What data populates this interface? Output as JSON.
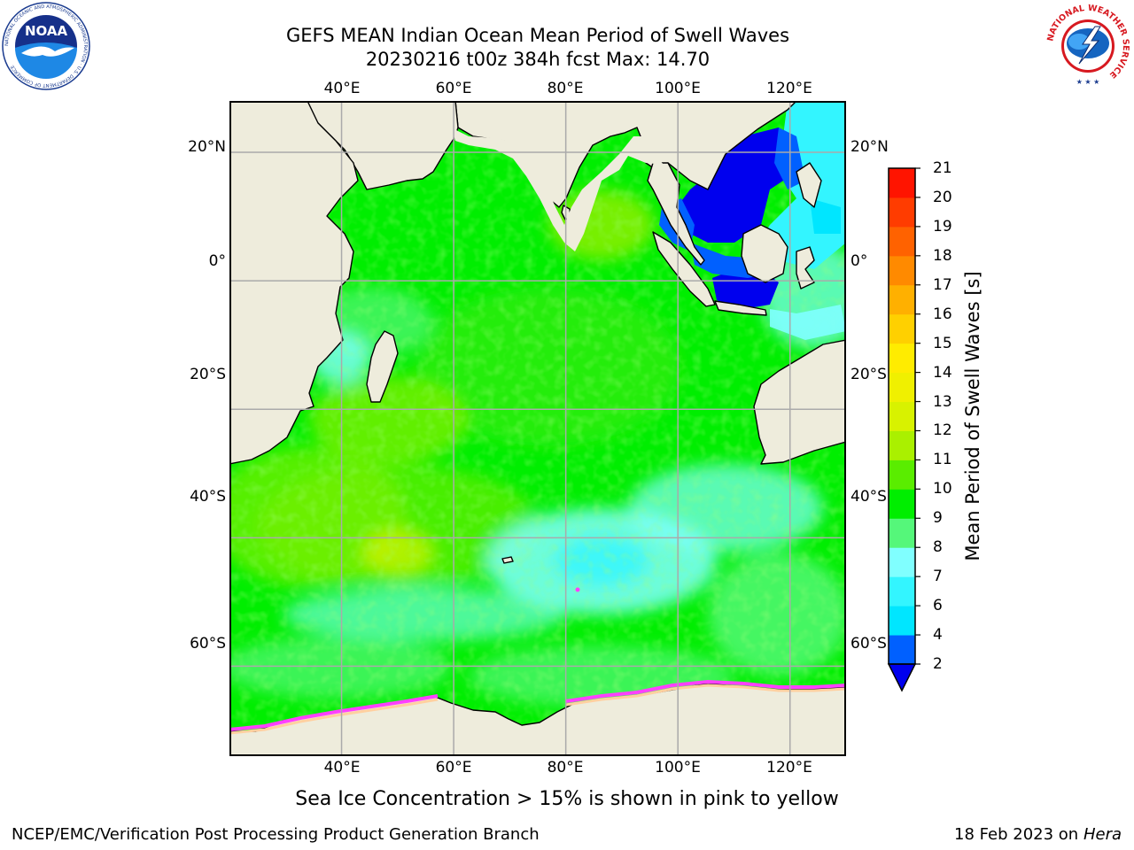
{
  "header": {
    "title": "GEFS MEAN Indian Ocean Mean Period of Swell Waves",
    "subtitle": "20230216 t00z 384h fcst   Max: 14.70"
  },
  "logos": {
    "left": {
      "text": "NOAA",
      "ring_text": "NATIONAL OCEANIC AND ATMOSPHERIC ADMINISTRATION · U.S. DEPARTMENT OF COMMERCE"
    },
    "right": {
      "ring_text": "NATIONAL WEATHER SERVICE"
    }
  },
  "map": {
    "projection": "equidistant-cylindrical",
    "lon_range": [
      20,
      130
    ],
    "lat_range": [
      -74,
      28
    ],
    "lon_labels_top": [
      "40°E",
      "60°E",
      "80°E",
      "100°E",
      "120°E"
    ],
    "lon_labels_bottom": [
      "40°E",
      "60°E",
      "80°E",
      "100°E",
      "120°E"
    ],
    "lat_labels_left": [
      "20°N",
      "0°",
      "20°S",
      "40°S",
      "60°S"
    ],
    "lat_labels_right": [
      "20°N",
      "0°",
      "20°S",
      "40°S",
      "60°S"
    ],
    "grid": true,
    "colors": {
      "land": "#eeecdc",
      "coast": "#000000",
      "grid": "#aaaaaa"
    }
  },
  "colorbar": {
    "label": "Mean Period of Swell Waves [s]",
    "ticks": [
      "2",
      "4",
      "6",
      "7",
      "8",
      "9",
      "10",
      "11",
      "12",
      "13",
      "14",
      "15",
      "16",
      "17",
      "18",
      "19",
      "20",
      "21"
    ],
    "tick_values": [
      2,
      4,
      6,
      7,
      8,
      9,
      10,
      11,
      12,
      13,
      14,
      15,
      16,
      17,
      18,
      19,
      20,
      21
    ],
    "colors": [
      "#0060ff",
      "#00e6ff",
      "#33f5ff",
      "#80ffff",
      "#55f77a",
      "#00ee00",
      "#5aed00",
      "#aaf000",
      "#d8f200",
      "#f0f000",
      "#ffec00",
      "#ffd000",
      "#ffb000",
      "#ff8a00",
      "#ff6200",
      "#ff3c00",
      "#ff1400"
    ],
    "extend_below_color": "#0000ee"
  },
  "footer": {
    "note": "Sea Ice Concentration > 15% is shown in pink to yellow",
    "credit": "NCEP/EMC/Verification Post Processing Product Generation Branch",
    "date": "18 Feb 2023 on",
    "machine": "Hera"
  }
}
